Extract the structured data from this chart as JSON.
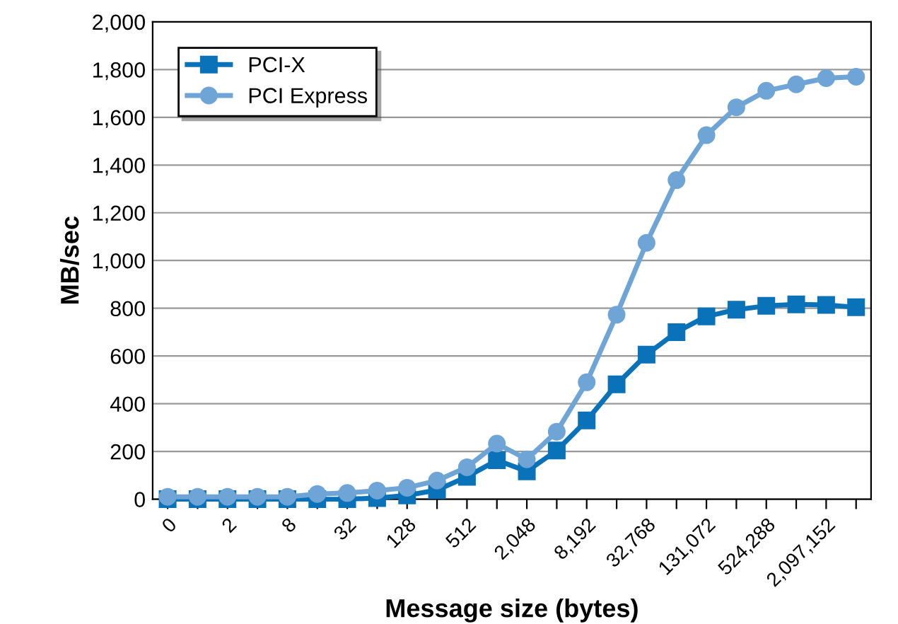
{
  "chart_data": {
    "type": "line",
    "xlabel": "Message size (bytes)",
    "ylabel": "MB/sec",
    "categories": [
      "0",
      null,
      "2",
      null,
      "8",
      null,
      "32",
      null,
      "128",
      null,
      "512",
      null,
      "2,048",
      null,
      "8,192",
      null,
      "32,768",
      null,
      "131,072",
      null,
      "524,288",
      null,
      "2,097,152",
      null
    ],
    "series": [
      {
        "name": "PCI-X",
        "color": "#0a72b8",
        "marker": "square",
        "values": [
          0,
          0,
          0,
          0,
          0,
          0,
          0,
          5,
          16,
          38,
          94,
          163,
          117,
          204,
          330,
          481,
          606,
          700,
          766,
          794,
          810,
          816,
          814,
          804
        ]
      },
      {
        "name": "PCI Express",
        "color": "#6fa5d6",
        "marker": "circle",
        "values": [
          10,
          10,
          10,
          10,
          10,
          22,
          26,
          36,
          48,
          78,
          134,
          233,
          167,
          283,
          490,
          773,
          1074,
          1337,
          1525,
          1642,
          1711,
          1738,
          1764,
          1770
        ]
      }
    ],
    "ylim": [
      0,
      2000
    ],
    "yticks": [
      {
        "value": 0,
        "label": "0"
      },
      {
        "value": 200,
        "label": "200"
      },
      {
        "value": 400,
        "label": "400"
      },
      {
        "value": 600,
        "label": "600"
      },
      {
        "value": 800,
        "label": "800"
      },
      {
        "value": 1000,
        "label": "1,000"
      },
      {
        "value": 1200,
        "label": "1,200"
      },
      {
        "value": 1400,
        "label": "1,400"
      },
      {
        "value": 1600,
        "label": "1,600"
      },
      {
        "value": 1800,
        "label": "1,800"
      },
      {
        "value": 2000,
        "label": "2,000"
      }
    ],
    "grid": "y",
    "legend": "top left",
    "line_style": "solid"
  }
}
